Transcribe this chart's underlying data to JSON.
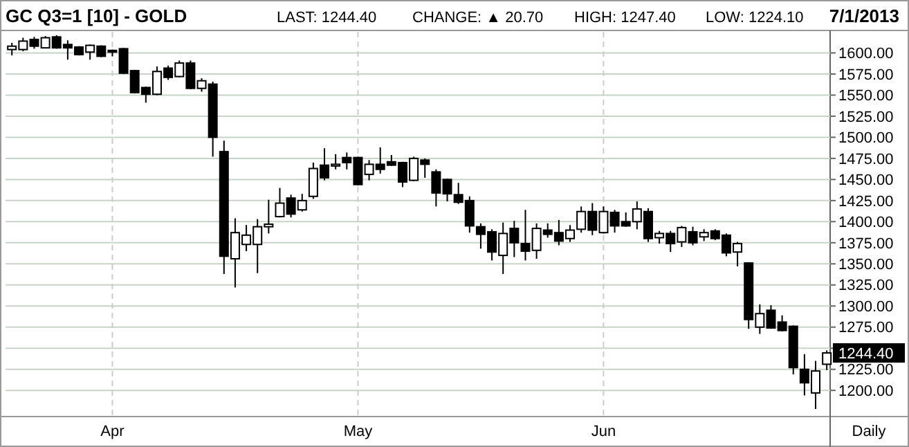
{
  "chart_data": {
    "type": "candlestick",
    "title": "GC Q3=1 [10] - GOLD",
    "subtitle": "7/1/2013",
    "xlabel": "Daily",
    "annotations": [
      "LAST: 1244.40",
      "CHANGE: ▲ 20.70",
      "HIGH: 1247.40",
      "LOW: 1224.10",
      "1244.40"
    ],
    "categories": [
      null,
      null,
      null,
      null,
      null,
      null,
      null,
      null,
      null,
      "Apr",
      null,
      null,
      null,
      null,
      null,
      null,
      null,
      null,
      null,
      null,
      null,
      null,
      null,
      null,
      null,
      null,
      null,
      null,
      null,
      null,
      null,
      "May",
      null,
      null,
      null,
      null,
      null,
      null,
      null,
      null,
      null,
      null,
      null,
      null,
      null,
      null,
      null,
      null,
      null,
      null,
      null,
      null,
      null,
      "Jun",
      null,
      null,
      null,
      null,
      null,
      null,
      null,
      null,
      null,
      null,
      null,
      null,
      null,
      null,
      null,
      null,
      null,
      null,
      null,
      null
    ],
    "ohlc": [
      [
        1604,
        1612,
        1597,
        1608
      ],
      [
        1604,
        1618,
        1602,
        1614
      ],
      [
        1616,
        1619,
        1605,
        1608
      ],
      [
        1606,
        1620,
        1606,
        1618
      ],
      [
        1619,
        1621,
        1605,
        1606
      ],
      [
        1610,
        1615,
        1592,
        1606
      ],
      [
        1607,
        1608,
        1597,
        1598
      ],
      [
        1601,
        1610,
        1592,
        1609
      ],
      [
        1608,
        1609,
        1595,
        1596
      ],
      [
        1603,
        1604,
        1596,
        1601
      ],
      [
        1605,
        1606,
        1575,
        1576
      ],
      [
        1579,
        1580,
        1552,
        1553
      ],
      [
        1559,
        1560,
        1541,
        1551
      ],
      [
        1551,
        1584,
        1550,
        1578
      ],
      [
        1582,
        1585,
        1568,
        1571
      ],
      [
        1572,
        1591,
        1571,
        1588
      ],
      [
        1588,
        1591,
        1557,
        1558
      ],
      [
        1558,
        1570,
        1554,
        1567
      ],
      [
        1563,
        1566,
        1477,
        1500
      ],
      [
        1483,
        1496,
        1338,
        1359
      ],
      [
        1356,
        1404,
        1322,
        1387
      ],
      [
        1373,
        1396,
        1365,
        1384
      ],
      [
        1373,
        1403,
        1339,
        1394
      ],
      [
        1394,
        1426,
        1386,
        1397
      ],
      [
        1406,
        1440,
        1405,
        1422
      ],
      [
        1428,
        1432,
        1405,
        1409
      ],
      [
        1414,
        1433,
        1412,
        1425
      ],
      [
        1430,
        1470,
        1427,
        1463
      ],
      [
        1467,
        1487,
        1449,
        1452
      ],
      [
        1466,
        1480,
        1462,
        1468
      ],
      [
        1476,
        1482,
        1462,
        1470
      ],
      [
        1476,
        1477,
        1443,
        1444
      ],
      [
        1456,
        1473,
        1449,
        1468
      ],
      [
        1468,
        1488,
        1457,
        1462
      ],
      [
        1471,
        1479,
        1466,
        1467
      ],
      [
        1470,
        1471,
        1441,
        1447
      ],
      [
        1449,
        1477,
        1448,
        1475
      ],
      [
        1473,
        1475,
        1452,
        1468
      ],
      [
        1459,
        1462,
        1418,
        1434
      ],
      [
        1450,
        1451,
        1424,
        1433
      ],
      [
        1432,
        1446,
        1421,
        1423
      ],
      [
        1425,
        1430,
        1387,
        1395
      ],
      [
        1394,
        1398,
        1368,
        1385
      ],
      [
        1388,
        1391,
        1354,
        1364
      ],
      [
        1360,
        1399,
        1338,
        1386
      ],
      [
        1392,
        1401,
        1358,
        1375
      ],
      [
        1374,
        1414,
        1354,
        1365
      ],
      [
        1366,
        1398,
        1356,
        1392
      ],
      [
        1390,
        1398,
        1381,
        1385
      ],
      [
        1387,
        1402,
        1372,
        1377
      ],
      [
        1380,
        1396,
        1376,
        1390
      ],
      [
        1391,
        1418,
        1387,
        1412
      ],
      [
        1412,
        1422,
        1384,
        1390
      ],
      [
        1387,
        1418,
        1386,
        1412
      ],
      [
        1411,
        1414,
        1387,
        1395
      ],
      [
        1400,
        1411,
        1394,
        1395
      ],
      [
        1400,
        1424,
        1391,
        1415
      ],
      [
        1412,
        1416,
        1376,
        1380
      ],
      [
        1381,
        1389,
        1374,
        1386
      ],
      [
        1386,
        1389,
        1364,
        1374
      ],
      [
        1376,
        1395,
        1370,
        1393
      ],
      [
        1388,
        1394,
        1372,
        1375
      ],
      [
        1382,
        1391,
        1377,
        1387
      ],
      [
        1389,
        1391,
        1378,
        1380
      ],
      [
        1384,
        1386,
        1359,
        1363
      ],
      [
        1364,
        1376,
        1347,
        1374
      ],
      [
        1351,
        1352,
        1273,
        1284
      ],
      [
        1275,
        1302,
        1267,
        1291
      ],
      [
        1295,
        1301,
        1273,
        1274
      ],
      [
        1281,
        1289,
        1270,
        1271
      ],
      [
        1276,
        1277,
        1219,
        1227
      ],
      [
        1225,
        1243,
        1194,
        1209
      ],
      [
        1197,
        1235,
        1178,
        1223
      ],
      [
        1231,
        1247.4,
        1224.1,
        1244.4
      ]
    ],
    "color": "#000000",
    "ylim": [
      1169,
      1625
    ],
    "yticks": [
      {
        "value": 1200,
        "label": "1200.00"
      },
      {
        "value": 1225,
        "label": "1225.00"
      },
      {
        "value": 1250,
        "label": null
      },
      {
        "value": 1275,
        "label": "1275.00"
      },
      {
        "value": 1300,
        "label": "1300.00"
      },
      {
        "value": 1325,
        "label": "1325.00"
      },
      {
        "value": 1350,
        "label": "1350.00"
      },
      {
        "value": 1375,
        "label": "1375.00"
      },
      {
        "value": 1400,
        "label": "1400.00"
      },
      {
        "value": 1425,
        "label": "1425.00"
      },
      {
        "value": 1450,
        "label": "1450.00"
      },
      {
        "value": 1475,
        "label": "1475.00"
      },
      {
        "value": 1500,
        "label": "1500.00"
      },
      {
        "value": 1525,
        "label": "1525.00"
      },
      {
        "value": 1550,
        "label": "1550.00"
      },
      {
        "value": 1575,
        "label": "1575.00"
      },
      {
        "value": 1600,
        "label": "1600.00"
      }
    ],
    "grid": true
  }
}
